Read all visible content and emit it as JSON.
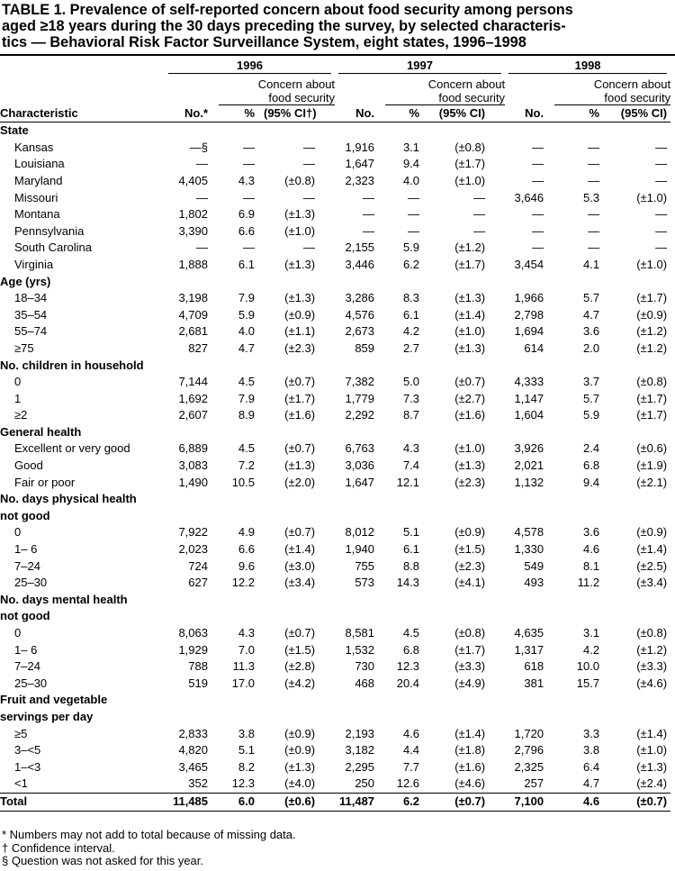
{
  "title_lines": [
    "TABLE 1. Prevalence of self-reported concern about food security among persons",
    "aged  ≥18 years during the 30 days preceding the survey, by selected characteris-",
    "tics — Behavioral Risk Factor Surveillance System, eight states, 1996–1998"
  ],
  "header": {
    "characteristic": "Characteristic",
    "groups": [
      {
        "year": "1996",
        "concern": [
          "Concern about",
          "food security"
        ],
        "columns": [
          "No.*",
          "%",
          "(95% CI†)"
        ]
      },
      {
        "year": "1997",
        "concern": [
          "Concern about",
          "food security"
        ],
        "columns": [
          "No.",
          "%",
          "(95% CI)"
        ]
      },
      {
        "year": "1998",
        "concern": [
          "Concern about",
          "food security"
        ],
        "columns": [
          "No.",
          "%",
          "(95% CI)"
        ]
      }
    ]
  },
  "sections": [
    {
      "heading": [
        "State"
      ],
      "rows": [
        {
          "label": "Kansas",
          "cells": [
            "—§",
            "—",
            "—",
            "1,916",
            "3.1",
            "(±0.8)",
            "—",
            "—",
            "—"
          ]
        },
        {
          "label": "Louisiana",
          "cells": [
            "—",
            "—",
            "—",
            "1,647",
            "9.4",
            "(±1.7)",
            "—",
            "—",
            "—"
          ]
        },
        {
          "label": "Maryland",
          "cells": [
            "4,405",
            "4.3",
            "(±0.8)",
            "2,323",
            "4.0",
            "(±1.0)",
            "—",
            "—",
            "—"
          ]
        },
        {
          "label": "Missouri",
          "cells": [
            "—",
            "—",
            "—",
            "—",
            "—",
            "—",
            "3,646",
            "5.3",
            "(±1.0)"
          ]
        },
        {
          "label": "Montana",
          "cells": [
            "1,802",
            "6.9",
            "(±1.3)",
            "—",
            "—",
            "—",
            "—",
            "—",
            "—"
          ]
        },
        {
          "label": "Pennsylvania",
          "cells": [
            "3,390",
            "6.6",
            "(±1.0)",
            "—",
            "—",
            "—",
            "—",
            "—",
            "—"
          ]
        },
        {
          "label": "South Carolina",
          "cells": [
            "—",
            "—",
            "—",
            "2,155",
            "5.9",
            "(±1.2)",
            "—",
            "—",
            "—"
          ]
        },
        {
          "label": "Virginia",
          "cells": [
            "1,888",
            "6.1",
            "(±1.3)",
            "3,446",
            "6.2",
            "(±1.7)",
            "3,454",
            "4.1",
            "(±1.0)"
          ]
        }
      ]
    },
    {
      "heading": [
        "Age (yrs)"
      ],
      "rows": [
        {
          "label": "18–34",
          "cells": [
            "3,198",
            "7.9",
            "(±1.3)",
            "3,286",
            "8.3",
            "(±1.3)",
            "1,966",
            "5.7",
            "(±1.7)"
          ]
        },
        {
          "label": "35–54",
          "cells": [
            "4,709",
            "5.9",
            "(±0.9)",
            "4,576",
            "6.1",
            "(±1.4)",
            "2,798",
            "4.7",
            "(±0.9)"
          ]
        },
        {
          "label": "55–74",
          "cells": [
            "2,681",
            "4.0",
            "(±1.1)",
            "2,673",
            "4.2",
            "(±1.0)",
            "1,694",
            "3.6",
            "(±1.2)"
          ]
        },
        {
          "label": "≥75",
          "cells": [
            "827",
            "4.7",
            "(±2.3)",
            "859",
            "2.7",
            "(±1.3)",
            "614",
            "2.0",
            "(±1.2)"
          ]
        }
      ]
    },
    {
      "heading": [
        "No. children in household"
      ],
      "rows": [
        {
          "label": "0",
          "cells": [
            "7,144",
            "4.5",
            "(±0.7)",
            "7,382",
            "5.0",
            "(±0.7)",
            "4,333",
            "3.7",
            "(±0.8)"
          ]
        },
        {
          "label": "1",
          "cells": [
            "1,692",
            "7.9",
            "(±1.7)",
            "1,779",
            "7.3",
            "(±2.7)",
            "1,147",
            "5.7",
            "(±1.7)"
          ]
        },
        {
          "label": "≥2",
          "cells": [
            "2,607",
            "8.9",
            "(±1.6)",
            "2,292",
            "8.7",
            "(±1.6)",
            "1,604",
            "5.9",
            "(±1.7)"
          ]
        }
      ]
    },
    {
      "heading": [
        "General health"
      ],
      "rows": [
        {
          "label": "Excellent or very good",
          "cells": [
            "6,889",
            "4.5",
            "(±0.7)",
            "6,763",
            "4.3",
            "(±1.0)",
            "3,926",
            "2.4",
            "(±0.6)"
          ]
        },
        {
          "label": "Good",
          "cells": [
            "3,083",
            "7.2",
            "(±1.3)",
            "3,036",
            "7.4",
            "(±1.3)",
            "2,021",
            "6.8",
            "(±1.9)"
          ]
        },
        {
          "label": "Fair or poor",
          "cells": [
            "1,490",
            "10.5",
            "(±2.0)",
            "1,647",
            "12.1",
            "(±2.3)",
            "1,132",
            "9.4",
            "(±2.1)"
          ]
        }
      ]
    },
    {
      "heading": [
        "No. days physical health",
        "not good"
      ],
      "rows": [
        {
          "label": "0",
          "cells": [
            "7,922",
            "4.9",
            "(±0.7)",
            "8,012",
            "5.1",
            "(±0.9)",
            "4,578",
            "3.6",
            "(±0.9)"
          ]
        },
        {
          "label": "1– 6",
          "cells": [
            "2,023",
            "6.6",
            "(±1.4)",
            "1,940",
            "6.1",
            "(±1.5)",
            "1,330",
            "4.6",
            "(±1.4)"
          ]
        },
        {
          "label": "7–24",
          "cells": [
            "724",
            "9.6",
            "(±3.0)",
            "755",
            "8.8",
            "(±2.3)",
            "549",
            "8.1",
            "(±2.5)"
          ]
        },
        {
          "label": "25–30",
          "cells": [
            "627",
            "12.2",
            "(±3.4)",
            "573",
            "14.3",
            "(±4.1)",
            "493",
            "11.2",
            "(±3.4)"
          ]
        }
      ]
    },
    {
      "heading": [
        "No. days mental health",
        "not good"
      ],
      "rows": [
        {
          "label": "0",
          "cells": [
            "8,063",
            "4.3",
            "(±0.7)",
            "8,581",
            "4.5",
            "(±0.8)",
            "4,635",
            "3.1",
            "(±0.8)"
          ]
        },
        {
          "label": "1– 6",
          "cells": [
            "1,929",
            "7.0",
            "(±1.5)",
            "1,532",
            "6.8",
            "(±1.7)",
            "1,317",
            "4.2",
            "(±1.2)"
          ]
        },
        {
          "label": "7–24",
          "cells": [
            "788",
            "11.3",
            "(±2.8)",
            "730",
            "12.3",
            "(±3.3)",
            "618",
            "10.0",
            "(±3.3)"
          ]
        },
        {
          "label": "25–30",
          "cells": [
            "519",
            "17.0",
            "(±4.2)",
            "468",
            "20.4",
            "(±4.9)",
            "381",
            "15.7",
            "(±4.6)"
          ]
        }
      ]
    },
    {
      "heading": [
        "Fruit and vegetable",
        "servings per day"
      ],
      "rows": [
        {
          "label": "≥5",
          "cells": [
            "2,833",
            "3.8",
            "(±0.9)",
            "2,193",
            "4.6",
            "(±1.4)",
            "1,720",
            "3.3",
            "(±1.4)"
          ]
        },
        {
          "label": "3–<5",
          "cells": [
            "4,820",
            "5.1",
            "(±0.9)",
            "3,182",
            "4.4",
            "(±1.8)",
            "2,796",
            "3.8",
            "(±1.0)"
          ]
        },
        {
          "label": "1–<3",
          "cells": [
            "3,465",
            "8.2",
            "(±1.3)",
            "2,295",
            "7.7",
            "(±1.6)",
            "2,325",
            "6.4",
            "(±1.3)"
          ]
        },
        {
          "label": "<1",
          "cells": [
            "352",
            "12.3",
            "(±4.0)",
            "250",
            "12.6",
            "(±4.6)",
            "257",
            "4.7",
            "(±2.4)"
          ]
        }
      ]
    }
  ],
  "total": {
    "label": "Total",
    "cells": [
      "11,485",
      "6.0",
      "(±0.6)",
      "11,487",
      "6.2",
      "(±0.7)",
      "7,100",
      "4.6",
      "(±0.7)"
    ]
  },
  "footnotes": [
    "*  Numbers may not add to total because of missing data.",
    "† Confidence interval.",
    "§ Question was not asked for this year."
  ]
}
